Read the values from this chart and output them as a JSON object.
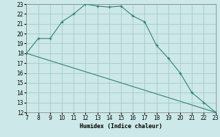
{
  "xlabel": "Humidex (Indice chaleur)",
  "curve1_x": [
    7,
    8,
    9,
    10,
    11,
    12,
    13,
    14,
    15,
    16,
    17,
    18,
    19,
    20,
    21,
    22,
    23
  ],
  "curve1_y": [
    18,
    19.5,
    19.5,
    21.2,
    22,
    23,
    22.8,
    22.7,
    22.8,
    21.8,
    21.2,
    18.8,
    17.5,
    16,
    14,
    13,
    12
  ],
  "curve2_x": [
    7,
    23
  ],
  "curve2_y": [
    18,
    12
  ],
  "line_color": "#2e7d6e",
  "bg_color": "#cce8e8",
  "grid_color": "#aacccc",
  "xlim": [
    7,
    23
  ],
  "ylim": [
    12,
    23
  ],
  "xticks": [
    7,
    8,
    9,
    10,
    11,
    12,
    13,
    14,
    15,
    16,
    17,
    18,
    19,
    20,
    21,
    22,
    23
  ],
  "yticks": [
    12,
    13,
    14,
    15,
    16,
    17,
    18,
    19,
    20,
    21,
    22,
    23
  ],
  "marker": "+"
}
